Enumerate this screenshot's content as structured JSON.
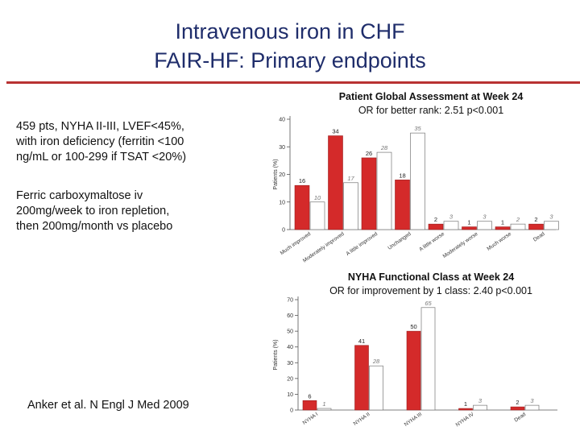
{
  "slide": {
    "title_line1": "Intravenous iron in CHF",
    "title_line2": "FAIR-HF: Primary endpoints",
    "info_lines": [
      "459 pts, NYHA II-III, LVEF<45%,",
      "with iron deficiency (ferritin <100",
      "ng/mL or 100-299 if TSAT <20%)"
    ],
    "treatment_lines": [
      "Ferric carboxymaltose iv",
      "200mg/week to iron repletion,",
      "then 200mg/month vs placebo"
    ],
    "citation": "Anker et al. N Engl J Med 2009"
  },
  "colors": {
    "title": "#1f2d6b",
    "rule": "#b83232",
    "active_bar": "#d42a2a",
    "placebo_bar": "#ffffff"
  },
  "chart_data": [
    {
      "type": "bar",
      "title": "Patient Global Assessment at Week 24",
      "subtitle": "OR for better rank: 2.51 p<0.001",
      "ylabel": "Patients (%)",
      "ylim": [
        0,
        40
      ],
      "yticks": [
        0,
        10,
        20,
        30,
        40
      ],
      "categories": [
        "Much improved",
        "Moderately improved",
        "A little improved",
        "Unchanged",
        "A little worse",
        "Moderately worse",
        "Much worse",
        "Dead"
      ],
      "series": [
        {
          "values": [
            16,
            34,
            26,
            18,
            2,
            1,
            1,
            2
          ]
        },
        {
          "values": [
            10,
            17,
            28,
            35,
            3,
            3,
            2,
            3
          ]
        }
      ],
      "value_labels": [
        [
          "16",
          "34",
          "26",
          "18",
          "2",
          "1",
          "1",
          "2"
        ],
        [
          "10",
          "17",
          "28",
          "35",
          "3",
          "3",
          "2",
          "3"
        ]
      ]
    },
    {
      "type": "bar",
      "title": "NYHA Functional Class at Week 24",
      "subtitle": "OR for improvement by 1 class: 2.40 p<0.001",
      "ylabel": "Patients (%)",
      "ylim": [
        0,
        70
      ],
      "yticks": [
        0,
        10,
        20,
        30,
        40,
        50,
        60,
        70
      ],
      "categories": [
        "NYHA I",
        "NYHA II",
        "NYHA III",
        "NYHA IV",
        "Dead"
      ],
      "series": [
        {
          "values": [
            6,
            41,
            50,
            1,
            2
          ]
        },
        {
          "values": [
            1,
            28,
            65,
            3,
            3
          ]
        }
      ],
      "value_labels": [
        [
          "6",
          "41",
          "50",
          "1",
          "2"
        ],
        [
          "1",
          "28",
          "65",
          "3",
          "3"
        ]
      ]
    }
  ]
}
